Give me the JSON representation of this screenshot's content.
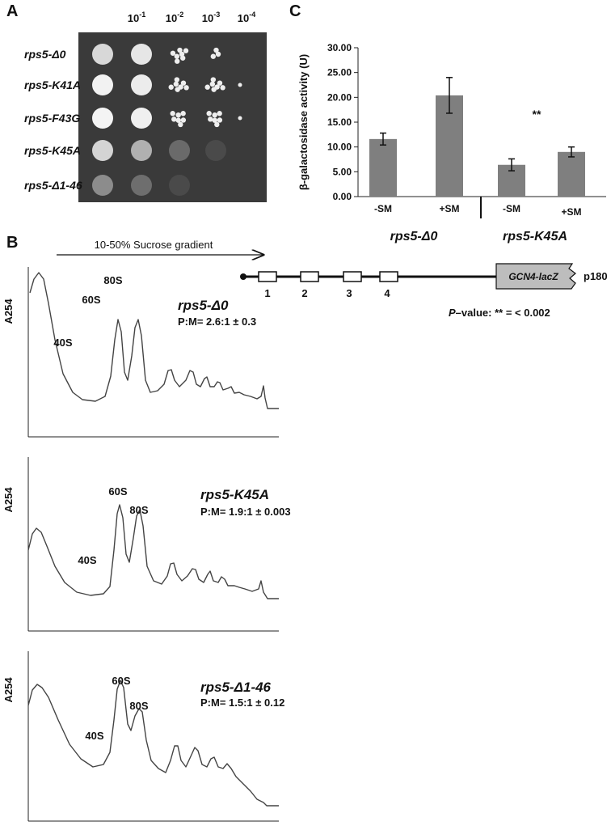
{
  "panel_a": {
    "label": "A",
    "dilutions": [
      {
        "base": "10",
        "exponent": "-1"
      },
      {
        "base": "10",
        "exponent": "-2"
      },
      {
        "base": "10",
        "exponent": "-3"
      },
      {
        "base": "10",
        "exponent": "-4"
      }
    ],
    "strains": [
      "rps5-Δ0",
      "rps5-K41A",
      "rps5-F43G",
      "rps5-K45A",
      "rps5-Δ1-46"
    ]
  },
  "panel_b": {
    "label": "B",
    "gradient": "10-50% Sucrose gradient",
    "profiles": [
      {
        "axis_label": "A254",
        "strain": "rps5-Δ0",
        "ratio": "P:M= 2.6:1 ± 0.3",
        "peaks": [
          "60S",
          "80S",
          "40S"
        ]
      },
      {
        "axis_label": "A254",
        "strain": "rps5-K45A",
        "ratio": "P:M= 1.9:1 ± 0.003",
        "peaks": [
          "60S",
          "80S",
          "40S"
        ]
      },
      {
        "axis_label": "A254",
        "strain": "rps5-Δ1-46",
        "ratio": "P:M= 1.5:1 ± 0.12",
        "peaks": [
          "60S",
          "80S",
          "40S"
        ]
      }
    ]
  },
  "panel_c": {
    "label": "C",
    "construct": {
      "uorfs": [
        "1",
        "2",
        "3",
        "4"
      ],
      "reporter": "GCN4-lacZ",
      "name": "p180"
    },
    "pvalue": {
      "symbol": "P",
      "text": "–value: ** = < 0.002"
    }
  },
  "chart_data": {
    "type": "bar",
    "ylabel": "β-galactosidase activity (U)",
    "categories": [
      "-SM",
      "+SM",
      "-SM",
      "+SM"
    ],
    "groups": [
      "rps5-Δ0",
      "rps5-K45A"
    ],
    "values": [
      11.6,
      20.4,
      6.4,
      9.0
    ],
    "errors": [
      1.2,
      3.6,
      1.2,
      1.0
    ],
    "color": "#7f7f7f",
    "ylim": [
      0,
      30
    ],
    "yticks": [
      {
        "value": 0,
        "label": "0.00"
      },
      {
        "value": 5,
        "label": "5.00"
      },
      {
        "value": 10,
        "label": "10.00"
      },
      {
        "value": 15,
        "label": "15.00"
      },
      {
        "value": 20,
        "label": "20.00"
      },
      {
        "value": 25,
        "label": "25.00"
      },
      {
        "value": 30,
        "label": "30.00"
      }
    ],
    "annotation": "**"
  }
}
